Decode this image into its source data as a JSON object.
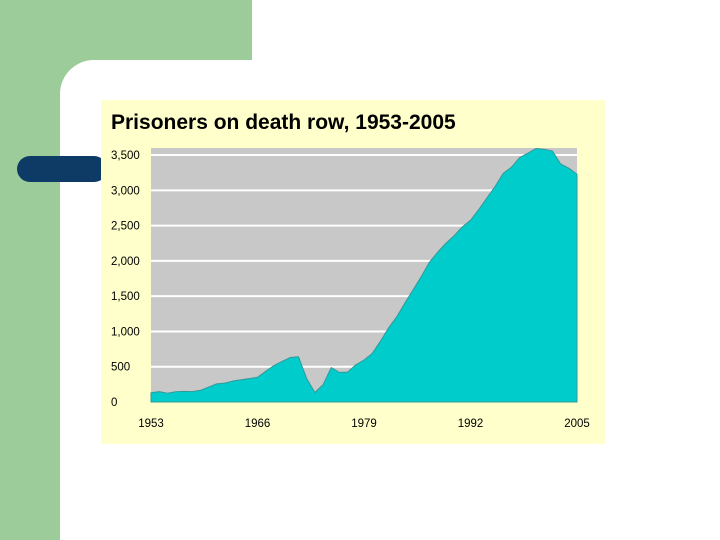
{
  "colors": {
    "slide_green": "#9ccc9a",
    "slide_bullet": "#0d3b66",
    "card_background": "#ffffcc",
    "plot_background": "#c8c8c8",
    "gridline": "#ffffff",
    "area_fill": "#00cccc",
    "area_stroke": "#339999"
  },
  "chart_data": {
    "type": "area",
    "title": "Prisoners on death row, 1953-2005",
    "xlabel": "",
    "ylabel": "",
    "xlim": [
      1953,
      2005
    ],
    "ylim": [
      0,
      3600
    ],
    "grid": true,
    "x_ticks": [
      {
        "value": 1953,
        "label": "1953"
      },
      {
        "value": 1966,
        "label": "1966"
      },
      {
        "value": 1979,
        "label": "1979"
      },
      {
        "value": 1992,
        "label": "1992"
      },
      {
        "value": 2005,
        "label": "2005"
      }
    ],
    "y_ticks": [
      {
        "value": 0,
        "label": "0"
      },
      {
        "value": 500,
        "label": "500"
      },
      {
        "value": 1000,
        "label": "1,000"
      },
      {
        "value": 1500,
        "label": "1,500"
      },
      {
        "value": 2000,
        "label": "2,000"
      },
      {
        "value": 2500,
        "label": "2,500"
      },
      {
        "value": 3000,
        "label": "3,000"
      },
      {
        "value": 3500,
        "label": "3,500"
      }
    ],
    "series": [
      {
        "x": [
          1953,
          1954,
          1955,
          1956,
          1957,
          1958,
          1959,
          1960,
          1961,
          1962,
          1963,
          1964,
          1965,
          1966,
          1967,
          1968,
          1969,
          1970,
          1971,
          1972,
          1973,
          1974,
          1975,
          1976,
          1977,
          1978,
          1979,
          1980,
          1981,
          1982,
          1983,
          1984,
          1985,
          1986,
          1987,
          1988,
          1989,
          1990,
          1991,
          1992,
          1993,
          1994,
          1995,
          1996,
          1997,
          1998,
          1999,
          2000,
          2001,
          2002,
          2003,
          2004,
          2005
        ],
        "values": [
          131,
          147,
          125,
          146,
          151,
          147,
          164,
          210,
          257,
          267,
          297,
          315,
          331,
          351,
          435,
          517,
          575,
          631,
          642,
          334,
          134,
          244,
          488,
          420,
          423,
          528,
          595,
          688,
          860,
          1050,
          1209,
          1405,
          1591,
          1781,
          1984,
          2124,
          2250,
          2356,
          2482,
          2575,
          2727,
          2890,
          3054,
          3242,
          3328,
          3465,
          3527,
          3593,
          3581,
          3557,
          3374,
          3314,
          3228
        ]
      }
    ]
  }
}
